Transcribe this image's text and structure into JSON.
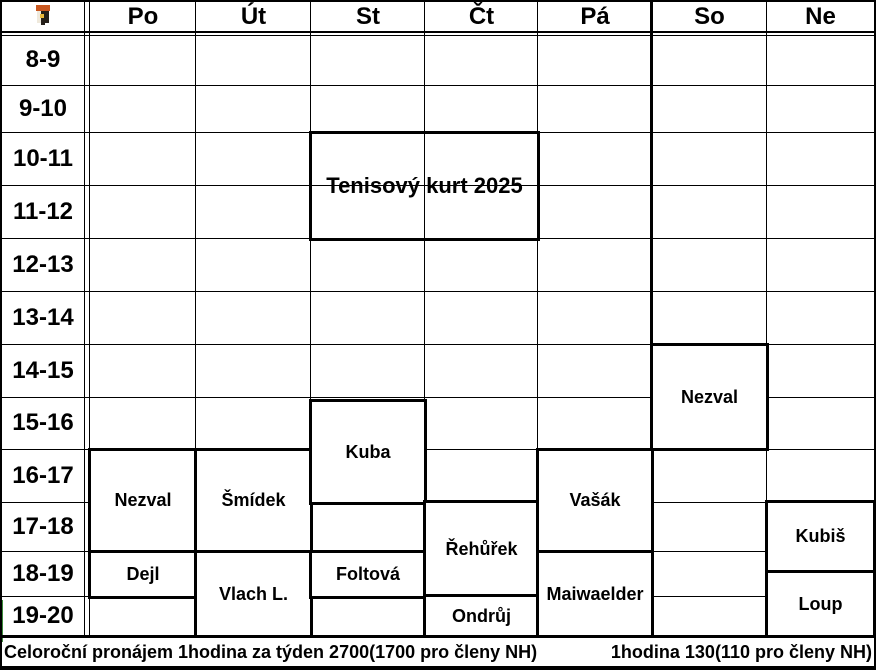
{
  "header": {
    "corner_icon": "club-crest-icon",
    "days": [
      "Po",
      "Út",
      "St",
      "Čt",
      "Pá",
      "So",
      "Ne"
    ]
  },
  "time_rows": [
    "8-9",
    "9-10",
    "10-11",
    "11-12",
    "12-13",
    "13-14",
    "14-15",
    "15-16",
    "16-17",
    "17-18",
    "18-19",
    "19-20"
  ],
  "title_box": {
    "label": "Tenisový kurt 2025"
  },
  "bookings": [
    {
      "name": "Nezval",
      "day": "Po",
      "rows": [
        "16-17",
        "17-18"
      ]
    },
    {
      "name": "Dejl",
      "day": "Po",
      "rows": [
        "18-19"
      ]
    },
    {
      "name": "Šmídek",
      "day": "Út",
      "rows": [
        "16-17",
        "17-18"
      ]
    },
    {
      "name": "Vlach L.",
      "day": "Út",
      "rows": [
        "18-19",
        "19-20"
      ]
    },
    {
      "name": "Kuba",
      "day": "St",
      "rows": [
        "15-16",
        "16-17"
      ]
    },
    {
      "name": "Foltová",
      "day": "St",
      "rows": [
        "18-19"
      ]
    },
    {
      "name": "Řehůřek",
      "day": "Čt",
      "rows": [
        "17-18",
        "18-19"
      ]
    },
    {
      "name": "Ondrůj",
      "day": "Čt",
      "rows": [
        "19-20"
      ]
    },
    {
      "name": "Vašák",
      "day": "Pá",
      "rows": [
        "16-17",
        "17-18"
      ]
    },
    {
      "name": "Maiwaelder",
      "day": "Pá",
      "rows": [
        "18-19",
        "19-20"
      ]
    },
    {
      "name": "Nezval",
      "day": "So",
      "rows": [
        "14-15",
        "15-16"
      ]
    },
    {
      "name": "Kubiš",
      "day": "Ne",
      "rows": [
        "17-18"
      ]
    },
    {
      "name": "Loup",
      "day": "Ne",
      "rows": [
        "18-19",
        "19-20"
      ]
    }
  ],
  "footer": {
    "left": "Celoroční pronájem 1hodina za týden 2700(1700 pro členy NH)",
    "right": "1hodina 130(110 pro členy NH)"
  },
  "colors": {
    "background": "#ffffff",
    "grid_line": "#000000",
    "text": "#000000",
    "edge_green": "#3a8a3a",
    "logo_orange": "#c9571f",
    "logo_dark": "#262019",
    "logo_cream": "#efe9dc",
    "logo_yellow": "#e9b93c"
  }
}
